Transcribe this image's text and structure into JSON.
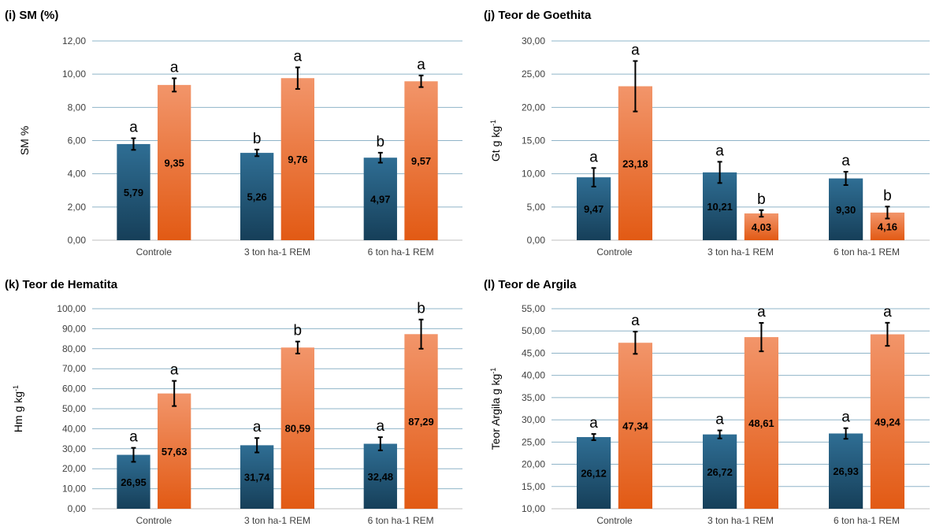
{
  "colors": {
    "series_blue_top": "#2f6e94",
    "series_blue_bottom": "#163f59",
    "series_orange_top": "#f2956a",
    "series_orange_bottom": "#e25a14",
    "grid": "#8fb4c8",
    "axis_text": "#404040",
    "error_bar": "#000000"
  },
  "chart_data": [
    {
      "type": "bar",
      "title": "(i) SM (%)",
      "ylabel": "SM %",
      "ylim": [
        0,
        12
      ],
      "y_ticks": [
        "0,00",
        "2,00",
        "4,00",
        "6,00",
        "8,00",
        "10,00",
        "12,00"
      ],
      "grid": true,
      "categories": [
        "Controle",
        "3 ton ha-1 REM",
        "6 ton ha-1 REM"
      ],
      "series": [
        {
          "values": [
            5.79,
            5.26,
            4.97
          ],
          "labels": [
            "5,79",
            "5,26",
            "4,97"
          ],
          "errors": [
            0.35,
            0.2,
            0.3
          ],
          "letters": [
            "a",
            "b",
            "b"
          ]
        },
        {
          "values": [
            9.35,
            9.76,
            9.57
          ],
          "labels": [
            "9,35",
            "9,76",
            "9,57"
          ],
          "errors": [
            0.4,
            0.65,
            0.35
          ],
          "letters": [
            "a",
            "a",
            "a"
          ]
        }
      ]
    },
    {
      "type": "bar",
      "title": "(j) Teor de Goethita",
      "ylabel": "Gt g kg",
      "ylabel_sup": "-1",
      "ylim": [
        0,
        30
      ],
      "y_ticks": [
        "0,00",
        "5,00",
        "10,00",
        "15,00",
        "20,00",
        "25,00",
        "30,00"
      ],
      "grid": true,
      "categories": [
        "Controle",
        "3 ton ha-1 REM",
        "6 ton ha-1 REM"
      ],
      "series": [
        {
          "values": [
            9.47,
            10.21,
            9.3
          ],
          "labels": [
            "9,47",
            "10,21",
            "9,30"
          ],
          "errors": [
            1.4,
            1.6,
            1.0
          ],
          "letters": [
            "a",
            "a",
            "a"
          ]
        },
        {
          "values": [
            23.18,
            4.03,
            4.16
          ],
          "labels": [
            "23,18",
            "4,03",
            "4,16"
          ],
          "errors": [
            3.8,
            0.5,
            0.9
          ],
          "letters": [
            "a",
            "b",
            "b"
          ]
        }
      ]
    },
    {
      "type": "bar",
      "title": "(k) Teor de Hematita",
      "ylabel": "Hm g kg",
      "ylabel_sup": "-1",
      "ylim": [
        0,
        100
      ],
      "y_ticks": [
        "0,00",
        "10,00",
        "20,00",
        "30,00",
        "40,00",
        "50,00",
        "60,00",
        "70,00",
        "80,00",
        "90,00",
        "100,00"
      ],
      "grid": true,
      "categories": [
        "Controle",
        "3 ton ha-1 REM",
        "6 ton ha-1 REM"
      ],
      "series": [
        {
          "values": [
            26.95,
            31.74,
            32.48
          ],
          "labels": [
            "26,95",
            "31,74",
            "32,48"
          ],
          "errors": [
            3.5,
            3.6,
            3.3
          ],
          "letters": [
            "a",
            "a",
            "a"
          ]
        },
        {
          "values": [
            57.63,
            80.59,
            87.29
          ],
          "labels": [
            "57,63",
            "80,59",
            "87,29"
          ],
          "errors": [
            6.3,
            3.0,
            7.3
          ],
          "letters": [
            "a",
            "b",
            "b"
          ]
        }
      ]
    },
    {
      "type": "bar",
      "title": "(l) Teor de Argila",
      "ylabel": "Teor Argila g kg",
      "ylabel_sup": "-1",
      "ylim": [
        10,
        55
      ],
      "y_ticks": [
        "10,00",
        "15,00",
        "20,00",
        "25,00",
        "30,00",
        "35,00",
        "40,00",
        "45,00",
        "50,00",
        "55,00"
      ],
      "grid": true,
      "categories": [
        "Controle",
        "3 ton ha-1 REM",
        "6 ton ha-1 REM"
      ],
      "series": [
        {
          "values": [
            26.12,
            26.72,
            26.93
          ],
          "labels": [
            "26,12",
            "26,72",
            "26,93"
          ],
          "errors": [
            0.7,
            0.9,
            1.2
          ],
          "letters": [
            "a",
            "a",
            "a"
          ]
        },
        {
          "values": [
            47.34,
            48.61,
            49.24
          ],
          "labels": [
            "47,34",
            "48,61",
            "49,24"
          ],
          "errors": [
            2.5,
            3.2,
            2.6
          ],
          "letters": [
            "a",
            "a",
            "a"
          ]
        }
      ]
    }
  ]
}
